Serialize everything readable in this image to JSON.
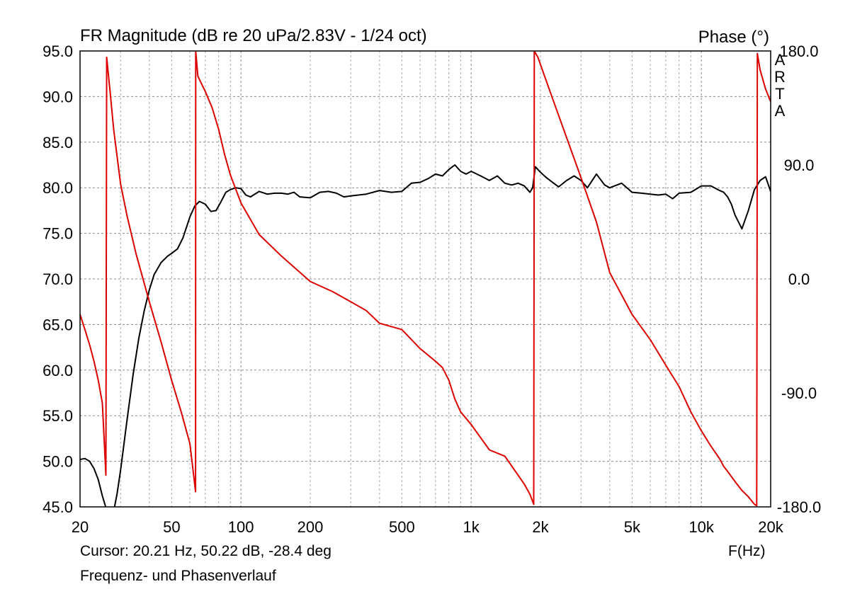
{
  "chart_data": {
    "type": "line",
    "title": "FR Magnitude (dB re 20 uPa/2.83V - 1/24 oct)",
    "y2label": "Phase (°)",
    "xlabel": "F(Hz)",
    "brand": "ARTA",
    "x_scale": "log",
    "xlim": [
      20,
      20000
    ],
    "ylim": [
      45,
      95
    ],
    "y2lim": [
      -180,
      180
    ],
    "grid": true,
    "x_ticks": [
      {
        "v": 20,
        "label": "20"
      },
      {
        "v": 50,
        "label": "50"
      },
      {
        "v": 100,
        "label": "100"
      },
      {
        "v": 200,
        "label": "200"
      },
      {
        "v": 500,
        "label": "500"
      },
      {
        "v": 1000,
        "label": "1k"
      },
      {
        "v": 2000,
        "label": "2k"
      },
      {
        "v": 5000,
        "label": "5k"
      },
      {
        "v": 10000,
        "label": "10k"
      },
      {
        "v": 20000,
        "label": "20k"
      }
    ],
    "y_ticks": [
      "95.0",
      "90.0",
      "85.0",
      "80.0",
      "75.0",
      "70.0",
      "65.0",
      "60.0",
      "55.0",
      "50.0",
      "45.0"
    ],
    "y2_ticks": [
      "180.0",
      "90.0",
      "0.0",
      "-90.0",
      "-180.0"
    ],
    "series": [
      {
        "name": "",
        "axis": "magnitude",
        "color": "#000000",
        "x": [
          20,
          21,
          22,
          23,
          24,
          25,
          26,
          27,
          28,
          29,
          30,
          32,
          34,
          36,
          38,
          40,
          42,
          45,
          48,
          50,
          53,
          56,
          60,
          63,
          66,
          70,
          74,
          78,
          82,
          86,
          90,
          95,
          100,
          105,
          110,
          120,
          130,
          140,
          150,
          160,
          170,
          180,
          200,
          220,
          240,
          260,
          280,
          300,
          350,
          400,
          450,
          500,
          550,
          600,
          650,
          700,
          750,
          800,
          850,
          900,
          950,
          1000,
          1100,
          1200,
          1300,
          1400,
          1500,
          1600,
          1700,
          1800,
          1850,
          1900,
          2000,
          2100,
          2200,
          2400,
          2600,
          2800,
          3000,
          3200,
          3500,
          3800,
          4000,
          4500,
          5000,
          5500,
          6000,
          6500,
          7000,
          7500,
          8000,
          9000,
          10000,
          11000,
          12000,
          12500,
          13000,
          13500,
          14000,
          15000,
          16000,
          17000,
          18000,
          19000,
          20000
        ],
        "values": [
          50.2,
          50.3,
          50.0,
          49.2,
          48.0,
          46.2,
          44.8,
          44.0,
          44.5,
          46.5,
          49.0,
          54.5,
          59.5,
          63.5,
          66.5,
          68.8,
          70.5,
          71.8,
          72.5,
          72.8,
          73.3,
          74.5,
          76.8,
          78.0,
          78.5,
          78.2,
          77.4,
          77.5,
          78.5,
          79.5,
          79.8,
          80.0,
          79.9,
          79.2,
          79.0,
          79.6,
          79.3,
          79.4,
          79.4,
          79.3,
          79.5,
          79.0,
          78.9,
          79.5,
          79.6,
          79.4,
          79.0,
          79.1,
          79.3,
          79.7,
          79.5,
          79.6,
          80.5,
          80.6,
          81.0,
          81.5,
          81.3,
          82.0,
          82.5,
          81.8,
          81.5,
          81.8,
          81.3,
          80.8,
          81.3,
          80.5,
          80.3,
          80.5,
          80.2,
          79.5,
          80.0,
          82.3,
          81.7,
          81.2,
          80.8,
          80.1,
          80.8,
          81.3,
          80.8,
          80.0,
          81.5,
          80.3,
          80.0,
          80.5,
          79.5,
          79.4,
          79.3,
          79.2,
          79.3,
          78.8,
          79.4,
          79.5,
          80.2,
          80.2,
          79.7,
          79.5,
          79.0,
          78.2,
          77.0,
          75.5,
          77.5,
          79.8,
          80.8,
          81.2,
          79.6
        ]
      },
      {
        "name": "",
        "axis": "phase",
        "color": "#dd0000",
        "x": [
          20,
          21,
          22,
          23,
          24,
          25,
          25.9,
          26.1,
          27,
          28,
          30,
          32,
          35,
          40,
          45,
          50,
          55,
          60,
          63.5,
          63.6,
          65,
          70,
          75,
          80,
          85,
          90,
          100,
          120,
          150,
          200,
          250,
          300,
          350,
          400,
          500,
          600,
          700,
          750,
          800,
          850,
          900,
          1000,
          1200,
          1400,
          1600,
          1700,
          1800,
          1870,
          1880,
          1950,
          2200,
          2500,
          3000,
          3500,
          4000,
          5000,
          6000,
          7000,
          8000,
          9000,
          10000,
          11000,
          12000,
          12500,
          13000,
          14000,
          15000,
          16000,
          17000,
          17400,
          17500,
          18000,
          19000,
          20000
        ],
        "values": [
          -28,
          -40,
          -52,
          -65,
          -80,
          -98,
          -155,
          175,
          148,
          118,
          75,
          50,
          20,
          -18,
          -50,
          -80,
          -105,
          -130,
          -168,
          180,
          160,
          148,
          135,
          118,
          98,
          82,
          60,
          35,
          18,
          -2,
          -10,
          -18,
          -25,
          -35,
          -40,
          -55,
          -65,
          -70,
          -80,
          -95,
          -105,
          -115,
          -135,
          -140,
          -155,
          -162,
          -170,
          -178,
          180,
          175,
          148,
          120,
          80,
          45,
          5,
          -28,
          -48,
          -68,
          -85,
          -105,
          -120,
          -132,
          -142,
          -148,
          -152,
          -160,
          -167,
          -172,
          -178,
          -179,
          178,
          165,
          150,
          140
        ]
      }
    ]
  },
  "cursor_readout": "Cursor: 20.21 Hz, 50.22 dB, -28.4 deg",
  "caption": "Frequenz- und Phasenverlauf"
}
